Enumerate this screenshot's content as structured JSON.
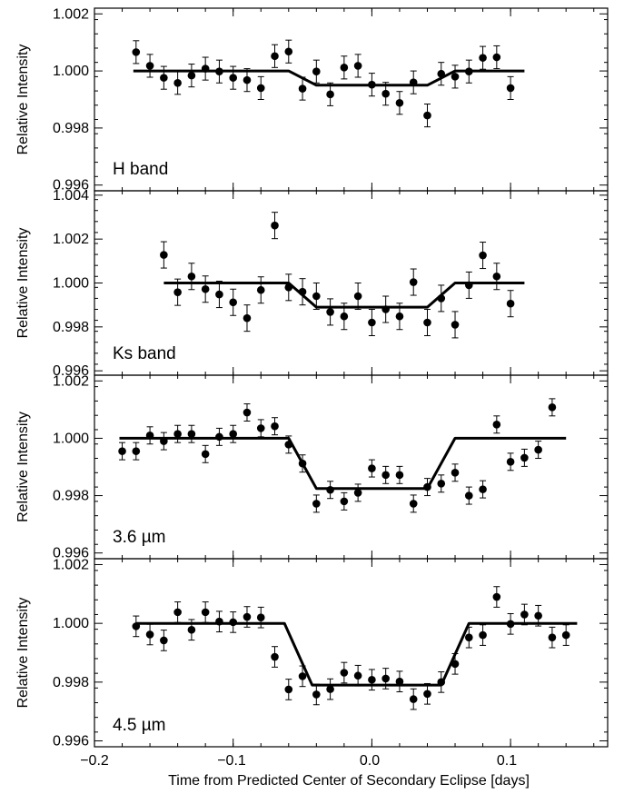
{
  "figure": {
    "xlabel": "Time from Predicted Center of Secondary Eclipse [days]",
    "x_ticks": [
      "−0.2",
      "−0.1",
      "0.0",
      "0.1"
    ]
  },
  "chart_data": [
    {
      "type": "scatter",
      "label": "H band",
      "ylabel": "Relative Intensity",
      "xlim": [
        -0.2,
        0.17
      ],
      "ylim": [
        0.9958,
        1.0022
      ],
      "y_ticks": [
        "0.996",
        "0.998",
        "1.000",
        "1.002"
      ],
      "y_tick_values": [
        0.996,
        0.998,
        1.0,
        1.002
      ],
      "x": [
        -0.17,
        -0.16,
        -0.15,
        -0.14,
        -0.13,
        -0.12,
        -0.11,
        -0.1,
        -0.09,
        -0.08,
        -0.07,
        -0.06,
        -0.05,
        -0.04,
        -0.03,
        -0.02,
        -0.01,
        0.0,
        0.01,
        0.02,
        0.03,
        0.04,
        0.05,
        0.06,
        0.07,
        0.08,
        0.09,
        0.1
      ],
      "y": [
        1.00066,
        1.00018,
        0.99976,
        0.99958,
        0.99984,
        1.00008,
        0.99998,
        0.99976,
        0.99968,
        0.9994,
        1.00052,
        1.00068,
        0.99938,
        0.99998,
        0.99918,
        1.00012,
        1.00018,
        0.99952,
        0.9992,
        0.99888,
        0.9996,
        0.99844,
        0.9999,
        0.9998,
        0.99998,
        1.00046,
        1.00048,
        0.9994
      ],
      "yerr": 0.0004,
      "model": [
        [
          -0.172,
          1.0
        ],
        [
          -0.06,
          1.0
        ],
        [
          -0.04,
          0.9995
        ],
        [
          0.04,
          0.9995
        ],
        [
          0.06,
          1.0
        ],
        [
          0.11,
          1.0
        ]
      ]
    },
    {
      "type": "scatter",
      "label": "Ks band",
      "ylabel": "Relative Intensity",
      "xlim": [
        -0.2,
        0.17
      ],
      "ylim": [
        0.9958,
        1.0042
      ],
      "y_ticks": [
        "0.996",
        "0.998",
        "1.000",
        "1.002",
        "1.004"
      ],
      "y_tick_values": [
        0.996,
        0.998,
        1.0,
        1.002,
        1.004
      ],
      "x": [
        -0.15,
        -0.14,
        -0.13,
        -0.12,
        -0.11,
        -0.1,
        -0.09,
        -0.08,
        -0.07,
        -0.06,
        -0.05,
        -0.04,
        -0.03,
        -0.02,
        -0.01,
        0.0,
        0.01,
        0.02,
        0.03,
        0.04,
        0.05,
        0.06,
        0.07,
        0.08,
        0.09,
        0.1
      ],
      "y": [
        1.00128,
        0.99958,
        1.0003,
        0.99972,
        0.99948,
        0.99912,
        0.9984,
        0.99968,
        1.00262,
        0.9998,
        0.9996,
        0.9994,
        0.99868,
        0.99848,
        0.9994,
        0.9982,
        0.9988,
        0.99848,
        1.00004,
        0.9982,
        0.9993,
        0.9981,
        0.9999,
        1.00126,
        1.0003,
        0.99906
      ],
      "yerr": 0.0006,
      "model": [
        [
          -0.15,
          1.0
        ],
        [
          -0.06,
          1.0
        ],
        [
          -0.04,
          0.9989
        ],
        [
          0.04,
          0.9989
        ],
        [
          0.06,
          1.0
        ],
        [
          0.11,
          1.0
        ]
      ]
    },
    {
      "type": "scatter",
      "label": "3.6 µm",
      "ylabel": "Relative Intensity",
      "xlim": [
        -0.2,
        0.17
      ],
      "ylim": [
        0.9958,
        1.0022
      ],
      "y_ticks": [
        "0.996",
        "0.998",
        "1.000",
        "1.002"
      ],
      "y_tick_values": [
        0.996,
        0.998,
        1.0,
        1.002
      ],
      "x": [
        -0.18,
        -0.17,
        -0.16,
        -0.15,
        -0.14,
        -0.13,
        -0.12,
        -0.11,
        -0.1,
        -0.09,
        -0.08,
        -0.07,
        -0.06,
        -0.05,
        -0.04,
        -0.03,
        -0.02,
        -0.01,
        0.0,
        0.01,
        0.02,
        0.03,
        0.04,
        0.05,
        0.06,
        0.07,
        0.08,
        0.09,
        0.1,
        0.11,
        0.12,
        0.13
      ],
      "y": [
        0.99955,
        0.99955,
        1.0001,
        0.9999,
        1.00015,
        1.00015,
        0.99945,
        1.00005,
        1.00015,
        1.0009,
        1.00035,
        1.00042,
        0.99978,
        0.99912,
        0.99772,
        0.9982,
        0.9978,
        0.9981,
        0.99895,
        0.99872,
        0.99872,
        0.99772,
        0.9983,
        0.99842,
        0.9988,
        0.998,
        0.99822,
        1.00048,
        0.99918,
        0.99932,
        0.9996,
        1.00108
      ],
      "yerr": 0.0003,
      "model": [
        [
          -0.182,
          1.0
        ],
        [
          -0.06,
          1.0
        ],
        [
          -0.04,
          0.99825
        ],
        [
          0.04,
          0.99825
        ],
        [
          0.06,
          1.0
        ],
        [
          0.14,
          1.0
        ]
      ]
    },
    {
      "type": "scatter",
      "label": "4.5 µm",
      "ylabel": "Relative Intensity",
      "xlim": [
        -0.2,
        0.17
      ],
      "ylim": [
        0.9958,
        1.0022
      ],
      "y_ticks": [
        "0.996",
        "0.998",
        "1.000",
        "1.002"
      ],
      "y_tick_values": [
        0.996,
        0.998,
        1.0,
        1.002
      ],
      "x": [
        -0.17,
        -0.16,
        -0.15,
        -0.14,
        -0.13,
        -0.12,
        -0.11,
        -0.1,
        -0.09,
        -0.08,
        -0.07,
        -0.06,
        -0.05,
        -0.04,
        -0.03,
        -0.02,
        -0.01,
        0.0,
        0.01,
        0.02,
        0.03,
        0.04,
        0.05,
        0.06,
        0.07,
        0.08,
        0.09,
        0.1,
        0.11,
        0.12,
        0.13,
        0.14
      ],
      "y": [
        0.9999,
        0.99962,
        0.99942,
        1.00038,
        0.99978,
        1.00038,
        1.00006,
        1.00004,
        1.00022,
        1.0002,
        0.99886,
        0.99775,
        0.9982,
        0.99758,
        0.99776,
        0.99832,
        0.99822,
        0.99808,
        0.99812,
        0.99802,
        0.99742,
        0.9976,
        0.998,
        0.99862,
        0.99952,
        0.9996,
        1.0009,
        0.99998,
        1.0003,
        1.00026,
        0.99952,
        0.9996
      ],
      "yerr": 0.00035,
      "model": [
        [
          -0.17,
          1.0
        ],
        [
          -0.063,
          1.0
        ],
        [
          -0.043,
          0.9979
        ],
        [
          0.05,
          0.9979
        ],
        [
          0.07,
          1.0
        ],
        [
          0.148,
          1.0
        ]
      ]
    }
  ]
}
